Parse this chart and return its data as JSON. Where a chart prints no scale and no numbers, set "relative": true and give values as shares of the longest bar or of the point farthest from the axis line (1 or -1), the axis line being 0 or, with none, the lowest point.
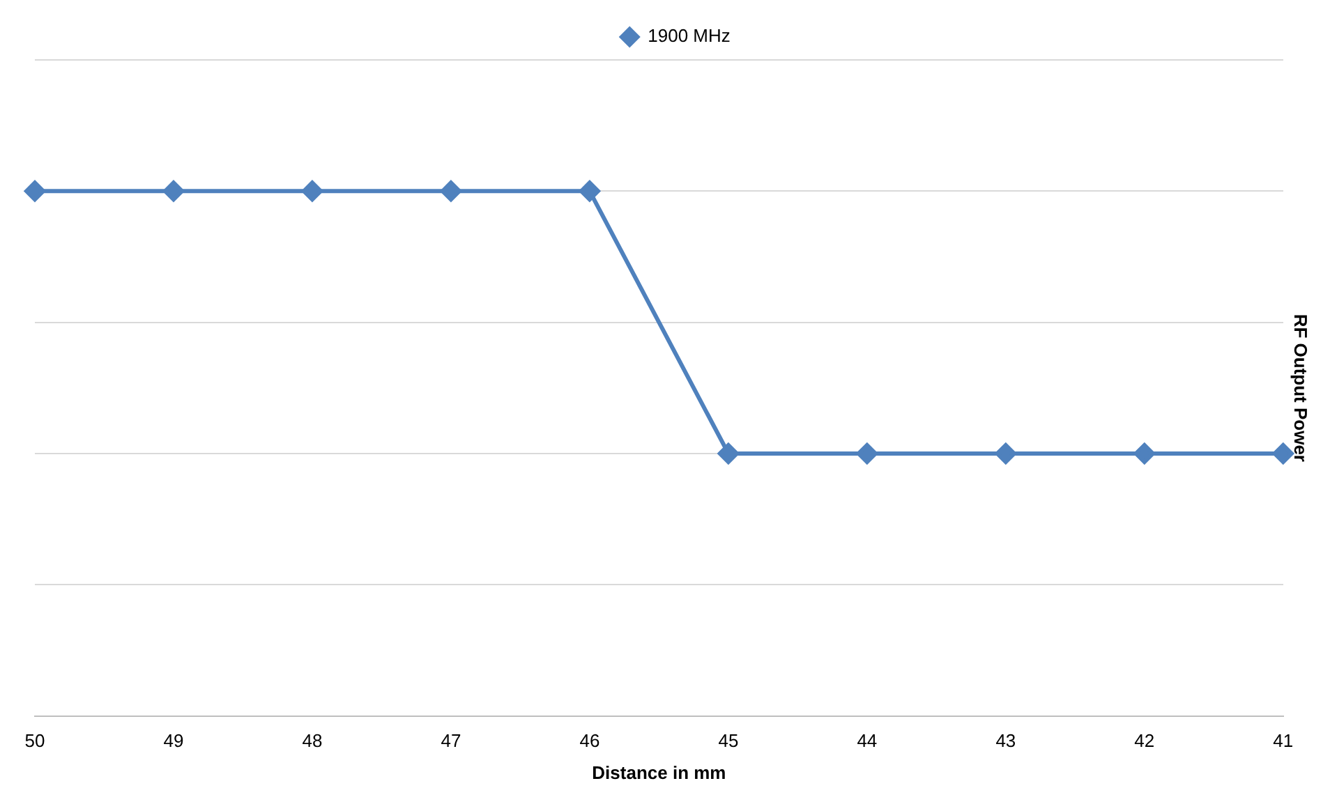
{
  "chart_data": {
    "type": "line",
    "relative": true,
    "xlabel": "Distance in mm",
    "ylabel": "RF Output Power",
    "categories": [
      "50",
      "49",
      "48",
      "47",
      "46",
      "45",
      "44",
      "43",
      "42",
      "41"
    ],
    "series": [
      {
        "name": "1900 MHz",
        "color": "#4f81bd",
        "values": [
          1,
          1,
          1,
          1,
          1,
          0.5,
          0.5,
          0.5,
          0.5,
          0.5
        ]
      }
    ],
    "grid": "y",
    "legend": "top",
    "marker": "diamond",
    "line_style": "solid"
  }
}
